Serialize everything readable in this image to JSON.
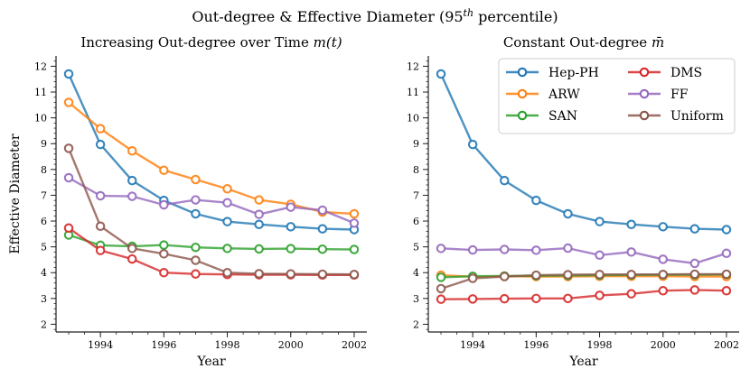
{
  "suptitle": "Out-degree & Effective Diameter (95th percentile)",
  "chart_data": [
    {
      "type": "line",
      "title": "Increasing Out-degree over Time m(t)",
      "xlabel": "Year",
      "ylabel": "Effective Diameter",
      "xlim": [
        1992.6,
        2002.4
      ],
      "ylim": [
        1.7,
        12.4
      ],
      "xticks": [
        1994,
        1996,
        1998,
        2000,
        2002
      ],
      "yticks": [
        2,
        3,
        4,
        5,
        6,
        7,
        8,
        9,
        10,
        11,
        12
      ],
      "x": [
        1993,
        1994,
        1995,
        1996,
        1997,
        1998,
        1999,
        2000,
        2001,
        2002
      ],
      "series": [
        {
          "name": "Hep-PH",
          "color": "#1f77b4",
          "values": [
            11.7,
            8.97,
            7.57,
            6.8,
            6.28,
            5.98,
            5.87,
            5.78,
            5.7,
            5.67
          ]
        },
        {
          "name": "ARW",
          "color": "#ff7f0e",
          "values": [
            10.6,
            9.58,
            8.72,
            7.97,
            7.61,
            7.25,
            6.82,
            6.65,
            6.35,
            6.28
          ]
        },
        {
          "name": "SAN",
          "color": "#2ca02c",
          "values": [
            5.46,
            5.06,
            5.02,
            5.07,
            4.98,
            4.94,
            4.92,
            4.93,
            4.91,
            4.9
          ]
        },
        {
          "name": "DMS",
          "color": "#d62728",
          "values": [
            5.73,
            4.86,
            4.53,
            4.0,
            3.95,
            3.93,
            3.92,
            3.92,
            3.91,
            3.91
          ]
        },
        {
          "name": "FF",
          "color": "#9467bd",
          "values": [
            7.68,
            6.98,
            6.96,
            6.63,
            6.82,
            6.71,
            6.26,
            6.54,
            6.42,
            5.92
          ]
        },
        {
          "name": "Uniform",
          "color": "#8c564b",
          "values": [
            8.82,
            5.8,
            4.94,
            4.73,
            4.48,
            4.0,
            3.96,
            3.95,
            3.94,
            3.93
          ]
        }
      ]
    },
    {
      "type": "line",
      "title": "Constant Out-degree m̄",
      "xlabel": "Year",
      "ylabel": "",
      "xlim": [
        1992.6,
        2002.4
      ],
      "ylim": [
        1.7,
        12.4
      ],
      "xticks": [
        1994,
        1996,
        1998,
        2000,
        2002
      ],
      "yticks": [
        2,
        3,
        4,
        5,
        6,
        7,
        8,
        9,
        10,
        11,
        12
      ],
      "legend_loc": "top-right",
      "x": [
        1993,
        1994,
        1995,
        1996,
        1997,
        1998,
        1999,
        2000,
        2001,
        2002
      ],
      "series": [
        {
          "name": "Hep-PH",
          "color": "#1f77b4",
          "values": [
            11.7,
            8.97,
            7.57,
            6.8,
            6.28,
            5.98,
            5.87,
            5.78,
            5.7,
            5.67
          ]
        },
        {
          "name": "ARW",
          "color": "#ff7f0e",
          "values": [
            3.9,
            3.84,
            3.86,
            3.85,
            3.85,
            3.86,
            3.86,
            3.86,
            3.85,
            3.85
          ]
        },
        {
          "name": "SAN",
          "color": "#2ca02c",
          "values": [
            3.82,
            3.86,
            3.87,
            3.88,
            3.89,
            3.9,
            3.91,
            3.92,
            3.92,
            3.93
          ]
        },
        {
          "name": "DMS",
          "color": "#d62728",
          "values": [
            2.97,
            2.98,
            2.99,
            3.0,
            3.0,
            3.12,
            3.18,
            3.3,
            3.33,
            3.3
          ]
        },
        {
          "name": "FF",
          "color": "#9467bd",
          "values": [
            4.94,
            4.88,
            4.9,
            4.87,
            4.95,
            4.68,
            4.8,
            4.52,
            4.36,
            4.75
          ]
        },
        {
          "name": "Uniform",
          "color": "#8c564b",
          "values": [
            3.38,
            3.78,
            3.85,
            3.9,
            3.92,
            3.93,
            3.93,
            3.93,
            3.94,
            3.94
          ]
        }
      ]
    }
  ]
}
